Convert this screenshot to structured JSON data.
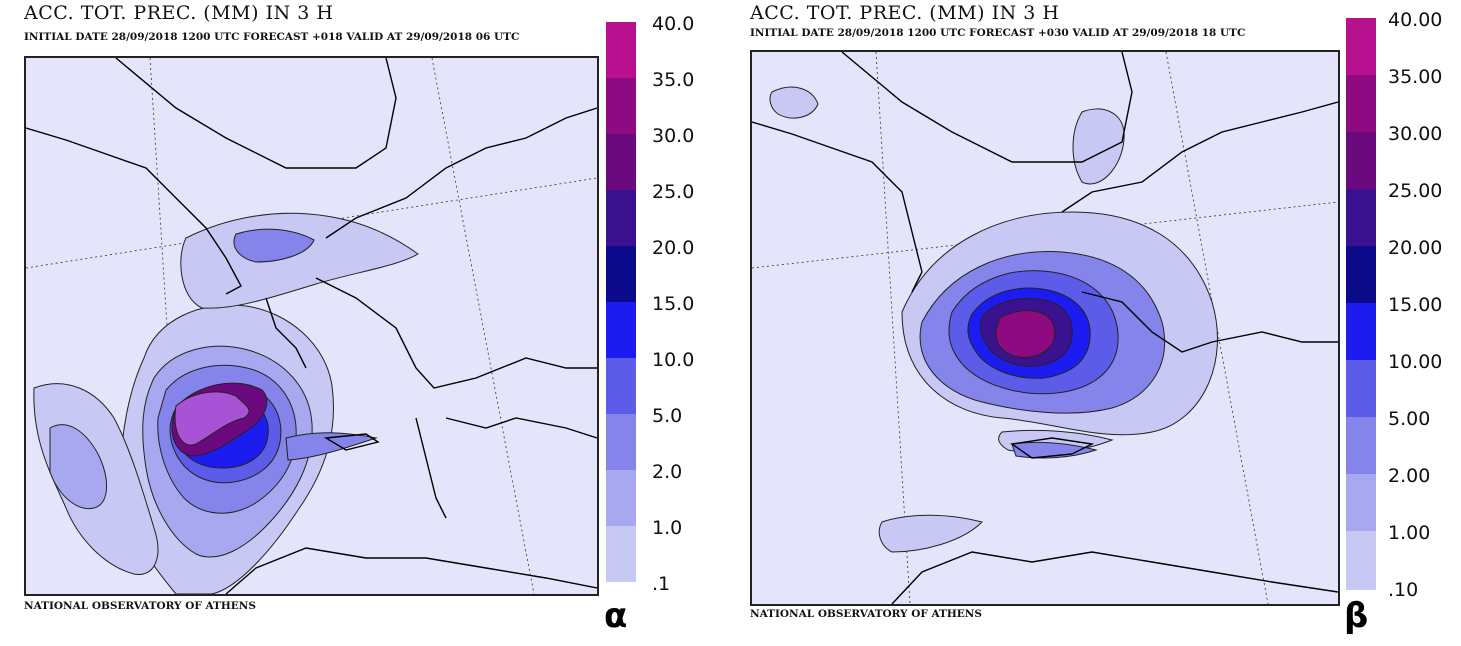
{
  "panels": [
    {
      "title": "ACC. TOT. PREC. (MM) IN 3 H",
      "subtitle": "INITIAL DATE 28/09/2018    1200 UTC  FORECAST +018 VALID AT  29/09/2018  06 UTC",
      "footer": "NATIONAL OBSERVATORY OF ATHENS",
      "panel_label": "α",
      "legend_labels": [
        "40.0",
        "35.0",
        "30.0",
        "25.0",
        "20.0",
        "15.0",
        "10.0",
        "5.0",
        "2.0",
        "1.0",
        ".1"
      ]
    },
    {
      "title": "ACC. TOT. PREC. (MM) IN 3 H",
      "subtitle": "INITIAL DATE 28/09/2018    1200 UTC  FORECAST +030 VALID AT  29/09/2018  18 UTC",
      "footer": "NATIONAL OBSERVATORY OF ATHENS",
      "panel_label": "β",
      "legend_labels": [
        "40.00",
        "35.00",
        "30.00",
        "25.00",
        "20.00",
        "15.00",
        "10.00",
        "5.00",
        "2.00",
        "1.00",
        ".10"
      ]
    }
  ],
  "legend_colors": [
    "#e4e4fb",
    "#c8c8f4",
    "#a8a8f0",
    "#8484ea",
    "#5c5ce8",
    "#1c1cf0",
    "#0a0a8a",
    "#3a1290",
    "#6a0a7e",
    "#8e0a80",
    "#b8108e"
  ],
  "colors": {
    "map_background": "#e4e4fb",
    "coastline": "#000000",
    "grid_line": "#333333"
  }
}
